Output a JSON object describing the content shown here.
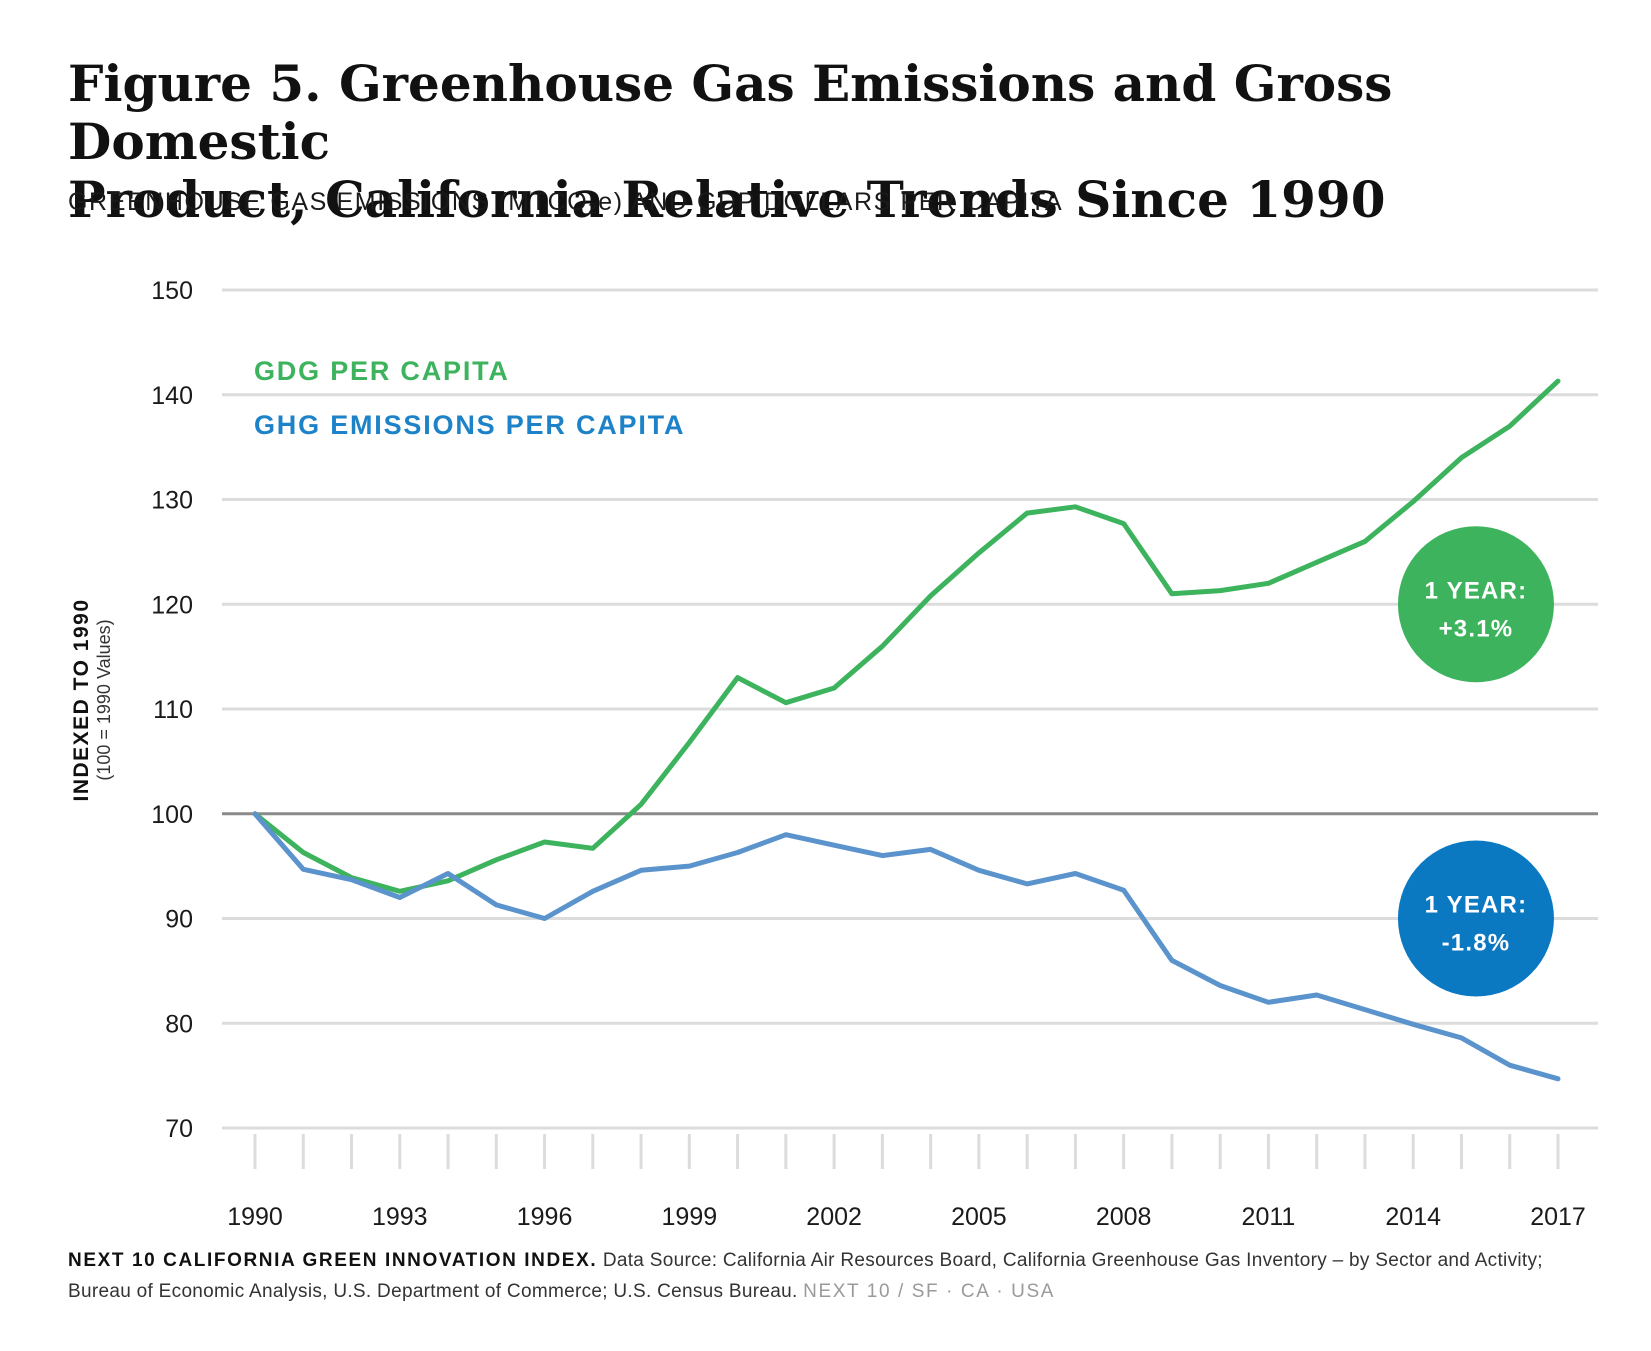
{
  "title": {
    "line1": "Figure 5. Greenhouse Gas Emissions and Gross Domestic",
    "line2": "Product, California Relative Trends Since 1990"
  },
  "subtitle": {
    "before": "GREENHOUSE GAS EMISSIONS (MTCO",
    "sub": "2",
    "after": "e) AND GDP DOLLARS PER CAPITA"
  },
  "colors": {
    "gdp": "#3db35e",
    "ghg": "#5b93cc",
    "ghg_label": "#1e82c8",
    "ghg_badge": "#0b78c2",
    "gridline": "#dcdcdc",
    "baseline": "#8a8a8a"
  },
  "chart_data": {
    "type": "line",
    "xlabel": "",
    "ylabel": "INDEXED TO 1990",
    "ylabel_sub": "(100 =  1990 Values)",
    "ylim": [
      70,
      150
    ],
    "yticks": [
      70,
      80,
      90,
      100,
      110,
      120,
      130,
      140,
      150
    ],
    "xlim": [
      1990,
      2017
    ],
    "xtick_labels": [
      1990,
      1993,
      1996,
      1999,
      2002,
      2005,
      2008,
      2011,
      2014,
      2017
    ],
    "baseline": 100,
    "grid": true,
    "legend_position": "top-left",
    "x": [
      1990,
      1991,
      1992,
      1993,
      1994,
      1995,
      1996,
      1997,
      1998,
      1999,
      2000,
      2001,
      2002,
      2003,
      2004,
      2005,
      2006,
      2007,
      2008,
      2009,
      2010,
      2011,
      2012,
      2013,
      2014,
      2015,
      2016,
      2017
    ],
    "series": [
      {
        "name": "GDG PER CAPITA",
        "color_key": "gdp",
        "values": [
          100,
          96.3,
          93.9,
          92.6,
          93.6,
          95.6,
          97.3,
          96.7,
          100.9,
          106.8,
          113.0,
          110.6,
          112.0,
          116.0,
          120.8,
          124.9,
          128.7,
          129.3,
          127.7,
          121.0,
          121.3,
          122.0,
          124.0,
          126.0,
          129.8,
          134.0,
          137.0,
          141.3
        ]
      },
      {
        "name": "GHG EMISSIONS PER CAPITA",
        "color_key": "ghg",
        "values": [
          100,
          94.7,
          93.7,
          92.0,
          94.3,
          91.3,
          90.0,
          92.6,
          94.6,
          95.0,
          96.3,
          98.0,
          97.0,
          96.0,
          96.6,
          94.6,
          93.3,
          94.3,
          92.7,
          86.0,
          83.6,
          82.0,
          82.7,
          81.3,
          79.9,
          78.6,
          76.0,
          74.7
        ]
      }
    ],
    "annotations": [
      {
        "series": "GDG PER CAPITA",
        "line1": "1 YEAR:",
        "line2": "+3.1%",
        "y": 120,
        "x": 2015.3,
        "color_key": "gdp"
      },
      {
        "series": "GHG EMISSIONS PER CAPITA",
        "line1": "1 YEAR:",
        "line2": "-1.8%",
        "y": 90,
        "x": 2015.3,
        "color_key": "ghg_badge"
      }
    ]
  },
  "footer": {
    "index_name": "NEXT 10 CALIFORNIA GREEN INNOVATION INDEX.",
    "source": "Data Source: California Air Resources Board, California Greenhouse Gas Inventory – by Sector and Activity; Bureau of Economic Analysis, U.S. Department of Commerce; U.S. Census Bureau.",
    "brand": "NEXT 10  /  SF · CA · USA"
  }
}
